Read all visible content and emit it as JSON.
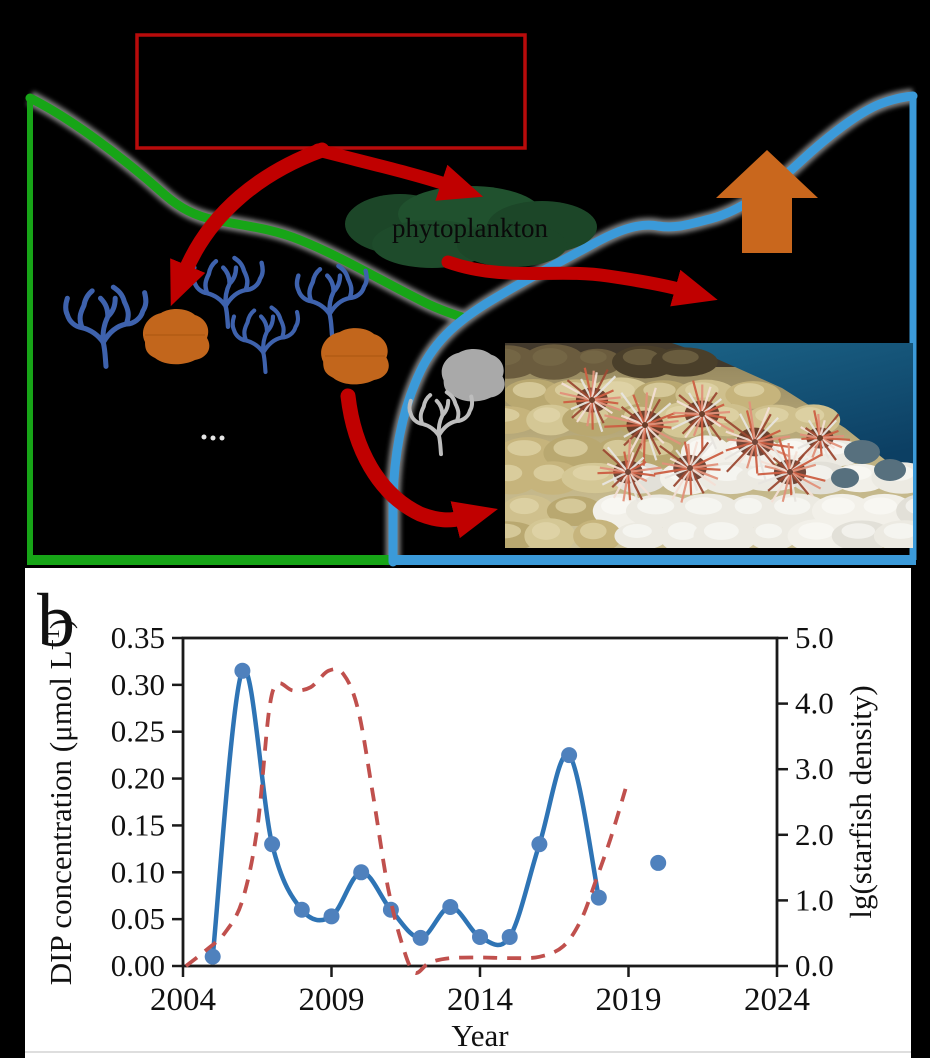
{
  "figure": {
    "panel_a": {
      "phytoplankton_label": "phytoplankton",
      "photo_description": "crown-of-thorns starfish on bleaching coral reef",
      "colors": {
        "healthy_box_green": "#17a517",
        "degraded_box_blue": "#3b9ad9",
        "arrow_red": "#c00000",
        "input_box_border_red": "#b80b0b",
        "orange_arrow": "#c9671d",
        "orange_blob": "#c2661c",
        "coral_blue": "#3e62ad",
        "coral_gray": "#bdbdbd",
        "phytoplankton_green": "#1c4628"
      }
    },
    "panel_b": {
      "label": "b"
    }
  },
  "chart_data": {
    "type": "line",
    "xlabel": "Year",
    "ylabel_left_pre": "DIP concentration (μmol L",
    "ylabel_left_sup": "−1",
    "ylabel_left_post": ")",
    "ylabel_right": "lg(starfish density)",
    "xlim": [
      2004,
      2024
    ],
    "ylim_left": [
      0,
      0.35
    ],
    "ylim_right": [
      0,
      5
    ],
    "x_ticks": [
      "2004",
      "2009",
      "2014",
      "2019",
      "2024"
    ],
    "y_ticks_left": [
      "0.00",
      "0.05",
      "0.10",
      "0.15",
      "0.20",
      "0.25",
      "0.30",
      "0.35"
    ],
    "y_ticks_right": [
      "0.0",
      "1.0",
      "2.0",
      "3.0",
      "4.0",
      "5.0"
    ],
    "grid": false,
    "legend": "none",
    "series": [
      {
        "name": "DIP concentration",
        "axis": "left",
        "style": "solid_smooth_with_markers",
        "color": "#2e74b5",
        "marker_color": "#4f81bd",
        "x": [
          2005,
          2006,
          2007,
          2008,
          2009,
          2010,
          2011,
          2012,
          2013,
          2014,
          2015,
          2016,
          2017,
          2018
        ],
        "y": [
          0.01,
          0.315,
          0.13,
          0.06,
          0.053,
          0.1,
          0.06,
          0.03,
          0.063,
          0.031,
          0.031,
          0.13,
          0.225,
          0.073
        ],
        "isolated_points": [
          {
            "x": 2020,
            "y": 0.11
          }
        ]
      },
      {
        "name": "lg(starfish density)",
        "axis": "right",
        "style": "dashed_smooth",
        "color": "#c0504d",
        "x": [
          2004.1,
          2004.8,
          2005.4,
          2006.0,
          2006.5,
          2006.9,
          2007.2,
          2007.7,
          2008.3,
          2008.9,
          2009.4,
          2009.9,
          2010.4,
          2010.9,
          2011.4,
          2011.8,
          2012.3,
          2013.0,
          2014.0,
          2015.0,
          2016.0,
          2016.8,
          2017.4,
          2017.9,
          2018.4,
          2018.9
        ],
        "y": [
          0.0,
          0.25,
          0.5,
          1.0,
          2.1,
          3.9,
          4.3,
          4.2,
          4.25,
          4.5,
          4.45,
          3.9,
          2.6,
          1.2,
          0.3,
          -0.1,
          0.05,
          0.12,
          0.13,
          0.12,
          0.14,
          0.3,
          0.7,
          1.3,
          1.95,
          2.7
        ]
      }
    ]
  }
}
